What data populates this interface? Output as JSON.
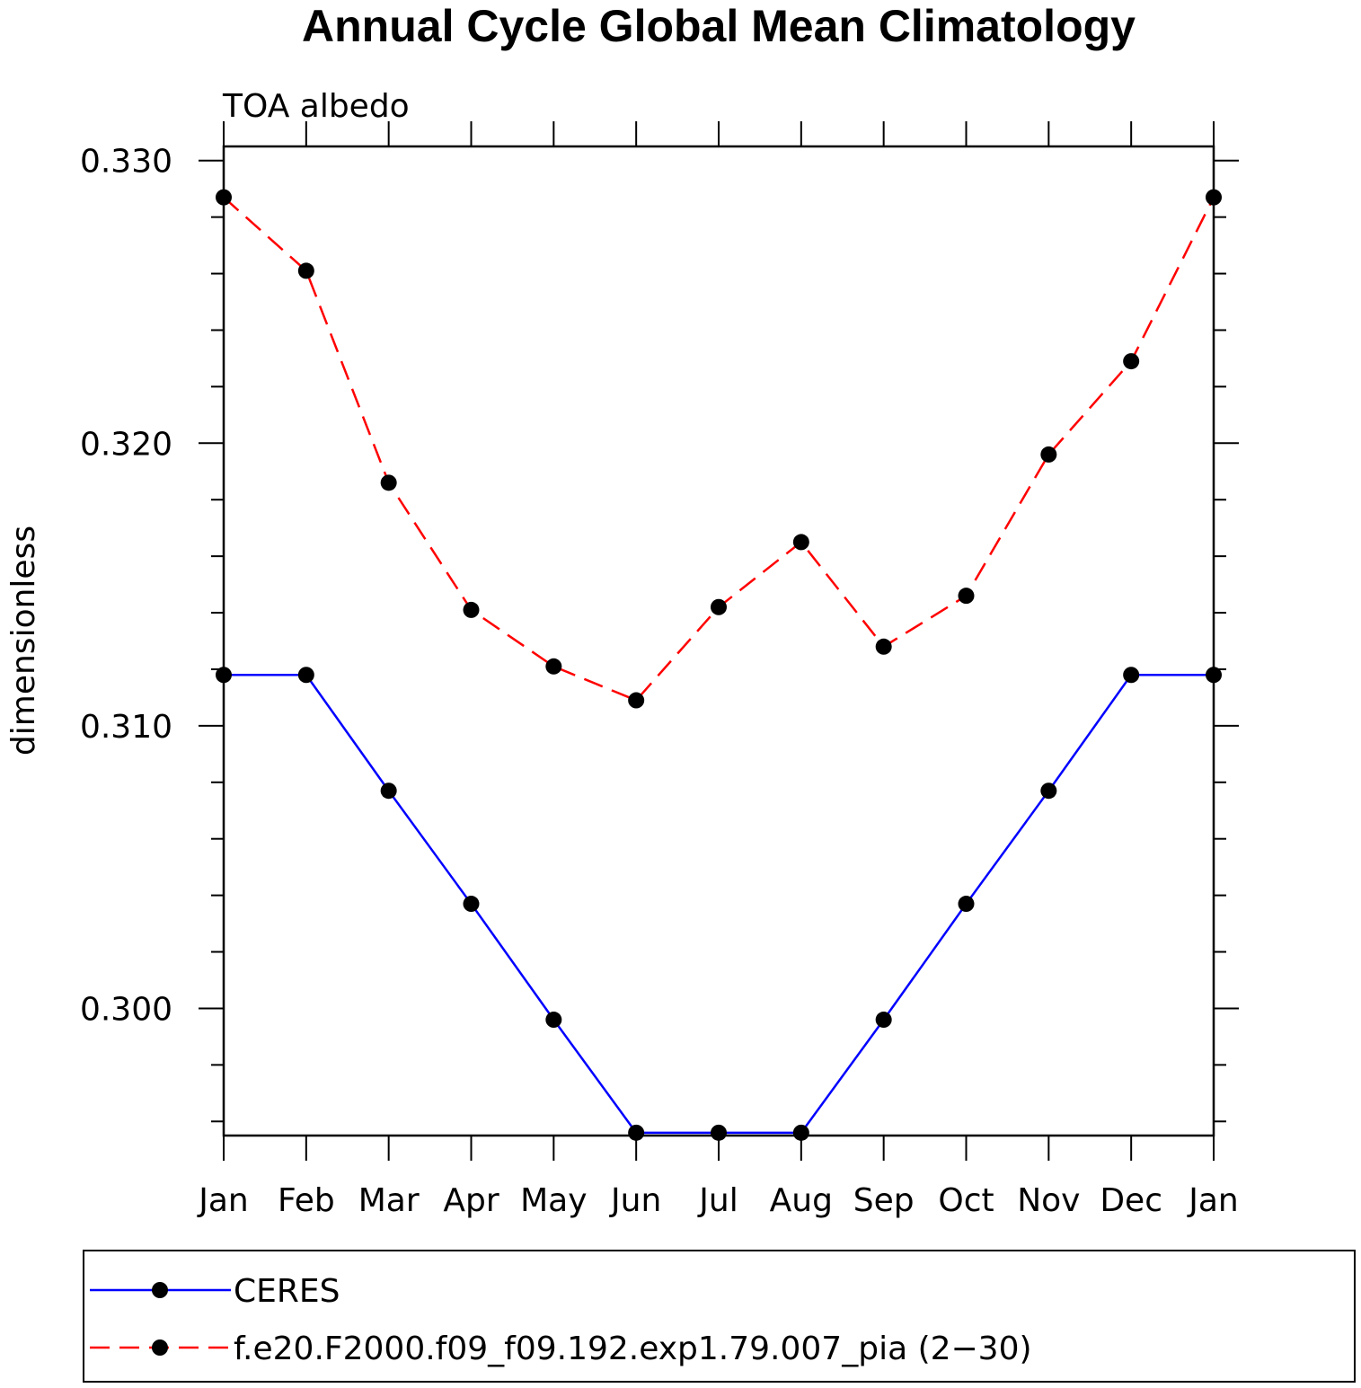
{
  "chart_data": {
    "type": "line",
    "title": "Annual Cycle Global Mean Climatology",
    "subtitle": "TOA albedo",
    "xlabel": "",
    "ylabel": "dimensionless",
    "categories": [
      "Jan",
      "Feb",
      "Mar",
      "Apr",
      "May",
      "Jun",
      "Jul",
      "Aug",
      "Sep",
      "Oct",
      "Nov",
      "Dec",
      "Jan"
    ],
    "ylim": [
      0.2955,
      0.3305
    ],
    "yticks": [
      0.3,
      0.31,
      0.32,
      0.33
    ],
    "ytick_labels": [
      "0.300",
      "0.310",
      "0.320",
      "0.330"
    ],
    "series": [
      {
        "name": "CERES",
        "color": "#0000ff",
        "dash": "solid",
        "values": [
          0.3118,
          0.3118,
          0.3077,
          0.3037,
          0.2996,
          0.2956,
          0.2956,
          0.2956,
          0.2996,
          0.3037,
          0.3077,
          0.3118,
          0.3118
        ]
      },
      {
        "name": "f.e20.F2000.f09_f09.192.exp1.79.007_pia (2−30)",
        "color": "#ff0000",
        "dash": "dashed",
        "values": [
          0.3287,
          0.3261,
          0.3186,
          0.3141,
          0.3121,
          0.3109,
          0.3142,
          0.3165,
          0.3128,
          0.3146,
          0.3196,
          0.3229,
          0.3287
        ]
      }
    ],
    "marker_color": "#000000",
    "legend_position": "bottom"
  }
}
